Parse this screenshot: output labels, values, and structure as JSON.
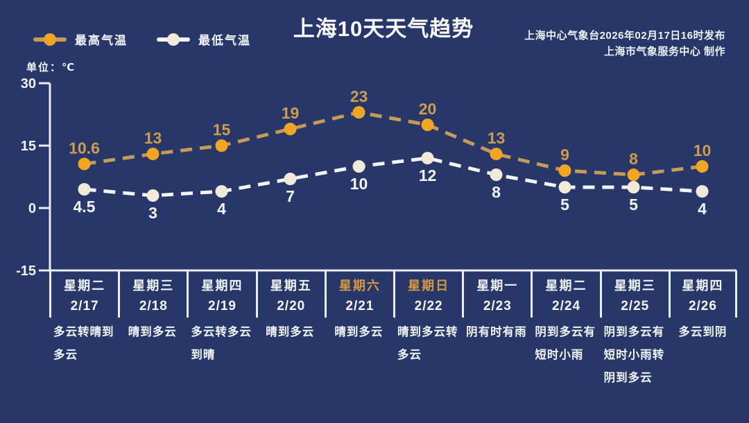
{
  "title": "上海10天天气趋势",
  "source": {
    "line1": "上海中心气象台2026年02月17日16时发布",
    "line2": "上海市气象服务中心  制作"
  },
  "unit_label": "单位：℃",
  "legend": {
    "high_label": "最高气温",
    "low_label": "最低气温"
  },
  "colors": {
    "background": "#273769",
    "axis": "#e9edf3",
    "text": "#f2f5f9",
    "weekend_day": "#d89a40",
    "high_line": "#c59c55",
    "high_marker": "#f0a622",
    "high_label": "#cf9d4a",
    "low_line": "#f3f5f7",
    "low_marker": "#f2ead9",
    "low_label": "#f5f7fa"
  },
  "chart_data": {
    "type": "line",
    "title": "上海10天天气趋势",
    "ylabel": "℃",
    "ylim": [
      -15,
      30
    ],
    "yticks": [
      30,
      15,
      0,
      -15
    ],
    "grid": false,
    "legend_position": "top-left",
    "categories": [
      {
        "day": "星期二",
        "date": "2/17",
        "weather": "多云转晴到多云",
        "weekend": false
      },
      {
        "day": "星期三",
        "date": "2/18",
        "weather": "晴到多云",
        "weekend": false
      },
      {
        "day": "星期四",
        "date": "2/19",
        "weather": "多云转多云到晴",
        "weekend": false
      },
      {
        "day": "星期五",
        "date": "2/20",
        "weather": "晴到多云",
        "weekend": false
      },
      {
        "day": "星期六",
        "date": "2/21",
        "weather": "晴到多云",
        "weekend": true
      },
      {
        "day": "星期日",
        "date": "2/22",
        "weather": "晴到多云转多云",
        "weekend": true
      },
      {
        "day": "星期一",
        "date": "2/23",
        "weather": "阴有时有雨",
        "weekend": false
      },
      {
        "day": "星期二",
        "date": "2/24",
        "weather": "阴到多云有短时小雨",
        "weendend": false,
        "weekend": false
      },
      {
        "day": "星期三",
        "date": "2/25",
        "weather": "阴到多云有短时小雨转阴到多云",
        "weekend": false
      },
      {
        "day": "星期四",
        "date": "2/26",
        "weather": "多云到阴",
        "weekend": false
      }
    ],
    "series": [
      {
        "name": "最高气温",
        "values": [
          10.6,
          13,
          15,
          19,
          23,
          20,
          13,
          9,
          8,
          10
        ],
        "label_pos": "above"
      },
      {
        "name": "最低气温",
        "values": [
          4.5,
          3,
          4,
          7,
          10,
          12,
          8,
          5,
          5,
          4
        ],
        "label_pos": "below"
      }
    ]
  }
}
